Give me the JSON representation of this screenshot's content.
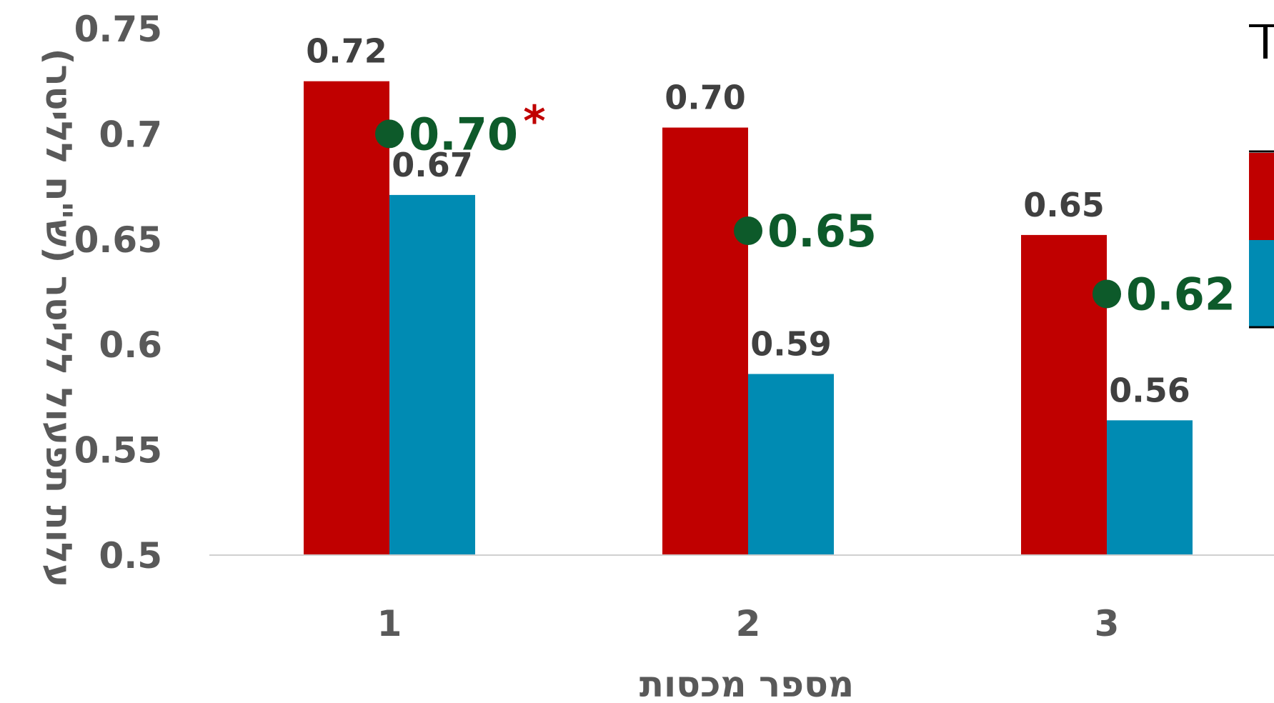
{
  "chart_data": {
    "type": "bar",
    "xlabel": "מספר מכסות",
    "ylabel": "עלות תפעול לליטר (ש\"ח לליטר)",
    "ylim": [
      0.5,
      0.75
    ],
    "y_ticks": [
      "0.5",
      "0.55",
      "0.6",
      "0.65",
      "0.7",
      "0.75"
    ],
    "categories": [
      "1",
      "2",
      "3"
    ],
    "grid": false,
    "series": [
      {
        "values": [
          0.725,
          0.703,
          0.652
        ],
        "labels": [
          "0.72",
          "0.70",
          "0.65"
        ]
      },
      {
        "values": [
          0.671,
          0.586,
          0.564
        ],
        "labels": [
          "0.67",
          "0.59",
          "0.56"
        ]
      }
    ],
    "markers": {
      "values": [
        0.7,
        0.654,
        0.624
      ],
      "labels": [
        "0.70",
        "0.65",
        "0.62"
      ]
    },
    "annotation": "*"
  },
  "colors": {
    "series1": "#c00000",
    "series2": "#008bb3",
    "marker": "#0d5a2a",
    "axis": "#d0d0d0",
    "text": "#595959"
  }
}
